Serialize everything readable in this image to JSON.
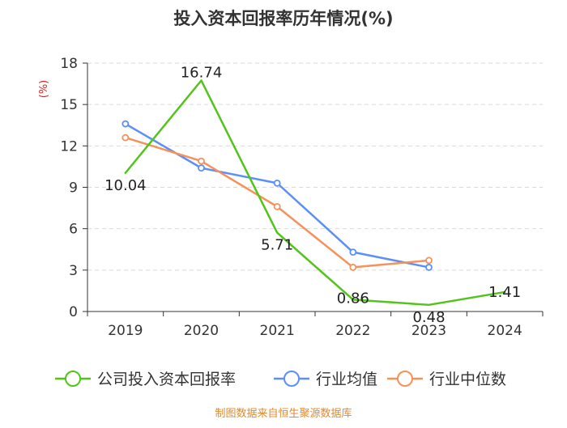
{
  "chart_data": {
    "type": "line",
    "title": "投入资本回报率历年情况(%)",
    "ylabel": "(%)",
    "xlabel": "",
    "categories": [
      "2019",
      "2020",
      "2021",
      "2022",
      "2023",
      "2024"
    ],
    "ylim": [
      0,
      18
    ],
    "yticks": [
      0,
      3,
      6,
      9,
      12,
      15,
      18
    ],
    "grid": true,
    "legend_position": "bottom",
    "series": [
      {
        "name": "公司投入资本回报率",
        "color": "#52c41a",
        "values": [
          10.04,
          16.74,
          5.71,
          0.86,
          0.48,
          1.41
        ],
        "labels": [
          "10.04",
          "16.74",
          "5.71",
          "0.86",
          "0.48",
          "1.41"
        ]
      },
      {
        "name": "行业均值",
        "color": "#5b8ff9",
        "values": [
          13.6,
          10.4,
          9.3,
          4.3,
          3.2,
          null
        ]
      },
      {
        "name": "行业中位数",
        "color": "#f6915b",
        "values": [
          12.6,
          10.9,
          7.6,
          3.2,
          3.7,
          null
        ]
      }
    ]
  },
  "source_text": "制图数据来自恒生聚源数据库",
  "colors": {
    "title": "#333333",
    "ylabel": "#e02020",
    "axis": "#333333",
    "grid": "#d9d9d9",
    "source": "#e08a2e",
    "label": "#222222"
  }
}
